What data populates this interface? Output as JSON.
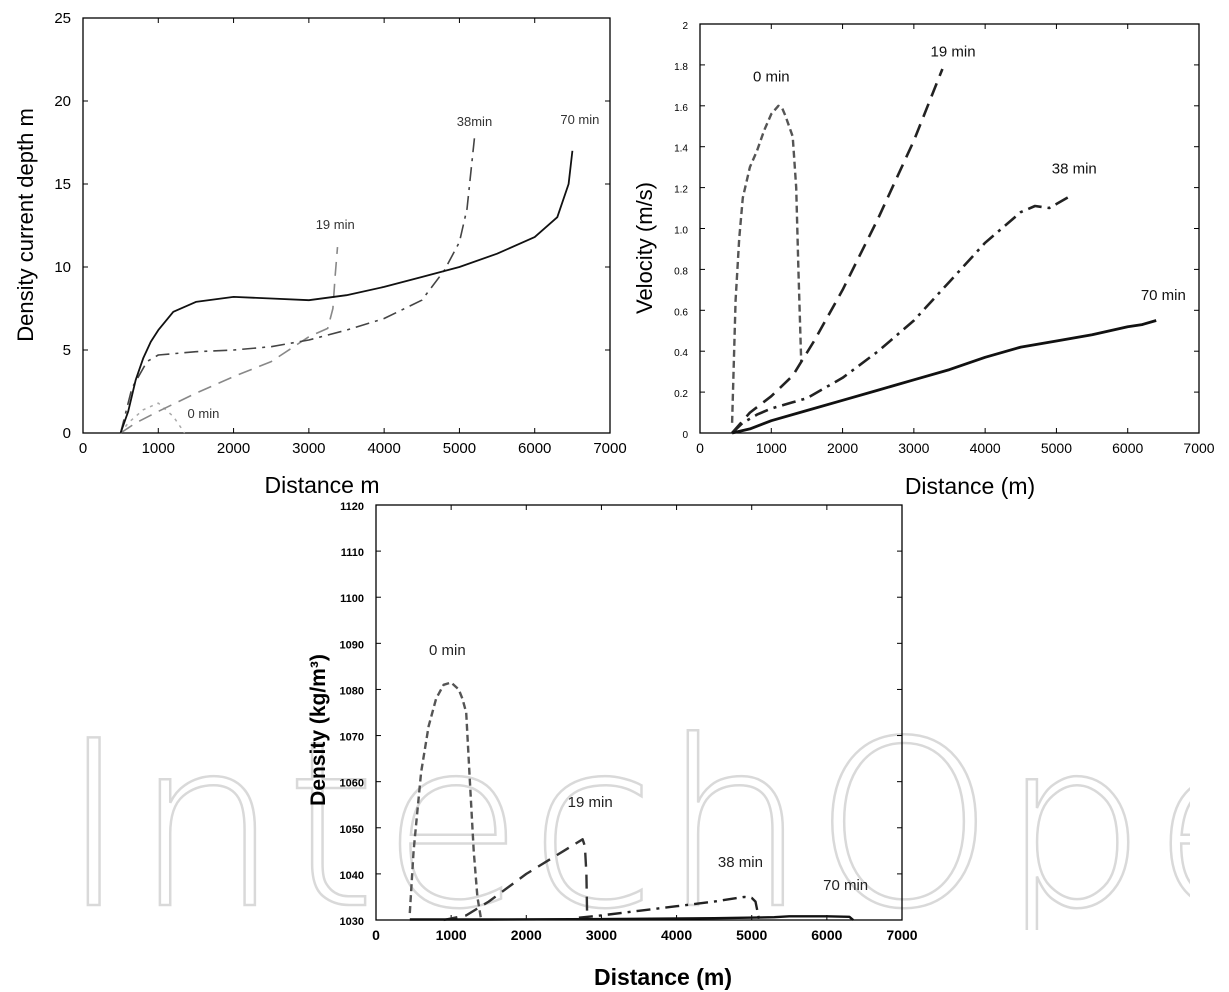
{
  "watermark": {
    "text": "IntechOpen"
  },
  "chart_data": [
    {
      "type": "line",
      "title": "",
      "xlabel": "Distance m",
      "ylabel": "Density current depth  m",
      "xlim": [
        0,
        7000
      ],
      "ylim": [
        0,
        25
      ],
      "xticks": [
        0,
        1000,
        2000,
        3000,
        4000,
        5000,
        6000,
        7000
      ],
      "yticks": [
        0,
        5,
        10,
        15,
        20,
        25
      ],
      "grid": false,
      "series": [
        {
          "name": "0 min",
          "style": "dotted",
          "color": "#aaaaaa",
          "width": 1.5,
          "x": [
            500,
            600,
            800,
            1000,
            1200,
            1350
          ],
          "y": [
            0,
            0.6,
            1.4,
            1.8,
            1.0,
            0
          ]
        },
        {
          "name": "19 min",
          "style": "dashed",
          "color": "#888888",
          "width": 1.6,
          "x": [
            500,
            700,
            1000,
            1500,
            2000,
            2500,
            3000,
            3250,
            3320,
            3350,
            3380
          ],
          "y": [
            0,
            0.6,
            1.3,
            2.4,
            3.4,
            4.3,
            5.8,
            6.3,
            7.5,
            9.5,
            11.2
          ]
        },
        {
          "name": "38min",
          "style": "dashdot",
          "color": "#444444",
          "width": 1.6,
          "x": [
            500,
            650,
            850,
            1000,
            1500,
            2000,
            2500,
            3000,
            3500,
            4000,
            4500,
            4800,
            5000,
            5100,
            5200
          ],
          "y": [
            0,
            2.7,
            4.3,
            4.7,
            4.9,
            5.0,
            5.2,
            5.6,
            6.2,
            6.9,
            8.0,
            9.8,
            11.5,
            13.5,
            17.8
          ]
        },
        {
          "name": "70 min",
          "style": "solid",
          "color": "#111111",
          "width": 1.8,
          "x": [
            500,
            600,
            700,
            800,
            900,
            1000,
            1200,
            1500,
            2000,
            2500,
            3000,
            3500,
            4000,
            4500,
            5000,
            5500,
            6000,
            6300,
            6450,
            6500
          ],
          "y": [
            0,
            1.3,
            3.2,
            4.5,
            5.5,
            6.2,
            7.3,
            7.9,
            8.2,
            8.1,
            8.0,
            8.3,
            8.8,
            9.4,
            10.0,
            10.8,
            11.8,
            13.0,
            15.0,
            17.0
          ]
        }
      ],
      "annotations": [
        {
          "text": "0 min",
          "x": 1600,
          "y": 0.9
        },
        {
          "text": "19 min",
          "x": 3350,
          "y": 12.3
        },
        {
          "text": "38min",
          "x": 5200,
          "y": 18.5
        },
        {
          "text": "70 min",
          "x": 6600,
          "y": 18.6
        }
      ]
    },
    {
      "type": "line",
      "title": "",
      "xlabel": "Distance (m)",
      "ylabel": "Velocity (m/s)",
      "xlim": [
        0,
        7000
      ],
      "ylim": [
        0,
        2
      ],
      "xticks": [
        0,
        1000,
        2000,
        3000,
        4000,
        5000,
        6000,
        7000
      ],
      "yticks": [
        0,
        0.2,
        0.4,
        0.6,
        0.8,
        1.0,
        1.2,
        1.4,
        1.6,
        1.8,
        2
      ],
      "ytick_labels": [
        "0",
        "0.2",
        "0.4",
        "0.6",
        "0.8",
        "1.0",
        "1.2",
        "1.4",
        "1.6",
        "1.8",
        "2"
      ],
      "grid": false,
      "series": [
        {
          "name": "0 min",
          "style": "dashed-fine",
          "color": "#555555",
          "width": 2.4,
          "x": [
            450,
            500,
            550,
            600,
            700,
            800,
            900,
            1000,
            1100,
            1150,
            1200,
            1300,
            1350,
            1380,
            1420
          ],
          "y": [
            0.05,
            0.65,
            0.95,
            1.15,
            1.3,
            1.38,
            1.48,
            1.56,
            1.6,
            1.59,
            1.55,
            1.45,
            1.2,
            0.8,
            0.35
          ]
        },
        {
          "name": "19 min",
          "style": "dashed",
          "color": "#222222",
          "width": 2.6,
          "x": [
            450,
            700,
            1000,
            1300,
            1600,
            2000,
            2500,
            3000,
            3400
          ],
          "y": [
            0,
            0.1,
            0.18,
            0.28,
            0.45,
            0.7,
            1.05,
            1.43,
            1.78
          ]
        },
        {
          "name": "38 min",
          "style": "dashdot",
          "color": "#222222",
          "width": 2.6,
          "x": [
            450,
            600,
            800,
            1000,
            1300,
            1500,
            2000,
            2500,
            3000,
            3500,
            4000,
            4500,
            4700,
            4900,
            5000,
            5200
          ],
          "y": [
            0,
            0.05,
            0.09,
            0.12,
            0.15,
            0.17,
            0.27,
            0.4,
            0.55,
            0.74,
            0.93,
            1.08,
            1.11,
            1.1,
            1.12,
            1.16
          ]
        },
        {
          "name": "70 min",
          "style": "solid",
          "color": "#111111",
          "width": 2.8,
          "x": [
            450,
            700,
            1000,
            1500,
            2000,
            2500,
            3000,
            3500,
            4000,
            4500,
            5000,
            5500,
            6000,
            6200,
            6400
          ],
          "y": [
            0,
            0.02,
            0.06,
            0.11,
            0.16,
            0.21,
            0.26,
            0.31,
            0.37,
            0.42,
            0.45,
            0.48,
            0.52,
            0.53,
            0.55
          ]
        }
      ],
      "annotations": [
        {
          "text": "0 min",
          "x": 1000,
          "y": 1.72
        },
        {
          "text": "19 min",
          "x": 3550,
          "y": 1.84
        },
        {
          "text": "38 min",
          "x": 5250,
          "y": 1.27
        },
        {
          "text": "70 min",
          "x": 6500,
          "y": 0.65
        }
      ]
    },
    {
      "type": "line",
      "title": "",
      "xlabel": "Distance (m)",
      "ylabel": "Density (kg/m³)",
      "xlim": [
        0,
        7000
      ],
      "ylim": [
        1030,
        1120
      ],
      "xticks": [
        0,
        1000,
        2000,
        3000,
        4000,
        5000,
        6000,
        7000
      ],
      "yticks": [
        1030,
        1040,
        1050,
        1060,
        1070,
        1080,
        1090,
        1100,
        1110,
        1120
      ],
      "grid": false,
      "series": [
        {
          "name": "0 min",
          "style": "dashed-fine",
          "color": "#555555",
          "width": 2.4,
          "x": [
            450,
            500,
            600,
            700,
            800,
            900,
            1000,
            1100,
            1150,
            1200,
            1250,
            1300,
            1350,
            1400
          ],
          "y": [
            1031.5,
            1045,
            1062,
            1072,
            1078,
            1081,
            1081.5,
            1080,
            1078,
            1075,
            1060,
            1045,
            1035,
            1030
          ]
        },
        {
          "name": "19 min",
          "style": "dashed",
          "color": "#333333",
          "width": 2.4,
          "x": [
            900,
            1200,
            1500,
            2000,
            2500,
            2750,
            2780,
            2800,
            2810
          ],
          "y": [
            1030,
            1031,
            1034,
            1040,
            1045,
            1047.5,
            1046,
            1040,
            1030
          ]
        },
        {
          "name": "38 min",
          "style": "dashdot",
          "color": "#222222",
          "width": 2.4,
          "x": [
            2700,
            3000,
            3500,
            4000,
            4500,
            4900,
            5000,
            5050,
            5100
          ],
          "y": [
            1030.5,
            1031,
            1032,
            1033,
            1034,
            1035,
            1034.8,
            1034,
            1030
          ]
        },
        {
          "name": "70 min",
          "style": "solid",
          "color": "#111111",
          "width": 2.4,
          "x": [
            450,
            1500,
            3000,
            4500,
            5300,
            5500,
            6000,
            6300,
            6350
          ],
          "y": [
            1030.1,
            1030.1,
            1030.2,
            1030.4,
            1030.6,
            1030.8,
            1030.8,
            1030.7,
            1030
          ]
        }
      ],
      "annotations": [
        {
          "text": "0 min",
          "x": 950,
          "y": 1087.5
        },
        {
          "text": "19 min",
          "x": 2850,
          "y": 1054.5
        },
        {
          "text": "38 min",
          "x": 4850,
          "y": 1041.5
        },
        {
          "text": "70 min",
          "x": 6250,
          "y": 1036.5
        }
      ]
    }
  ]
}
